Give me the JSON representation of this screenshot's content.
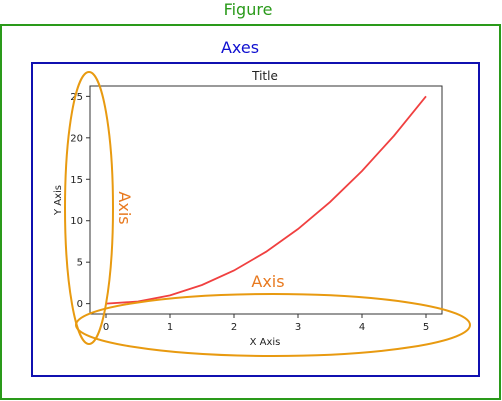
{
  "labels": {
    "figure": "Figure",
    "axes": "Axes",
    "axis_vertical": "Axis",
    "axis_horizontal": "Axis"
  },
  "colors": {
    "figure_border": "#2a9a1a",
    "figure_label": "#2a9a1a",
    "axes_border": "#1010b0",
    "axes_label": "#1010d0",
    "axis_ellipse": "#e89a10",
    "axis_label": "#e87a20",
    "plot_line": "#f04040"
  },
  "chart_data": {
    "type": "line",
    "title": "Title",
    "xlabel": "X Axis",
    "ylabel": "Y Axis",
    "x": [
      0,
      0.5,
      1,
      1.5,
      2,
      2.5,
      3,
      3.5,
      4,
      4.5,
      5
    ],
    "series": [
      {
        "values": [
          0,
          0.25,
          1,
          2.25,
          4,
          6.25,
          9,
          12.25,
          16,
          20.25,
          25
        ]
      }
    ],
    "xticks": [
      "0",
      "1",
      "2",
      "3",
      "4",
      "5"
    ],
    "yticks": [
      "0",
      "5",
      "10",
      "15",
      "20",
      "25"
    ],
    "xlim": [
      -0.25,
      5.25
    ],
    "ylim": [
      -1.25,
      26.25
    ],
    "grid": false
  }
}
